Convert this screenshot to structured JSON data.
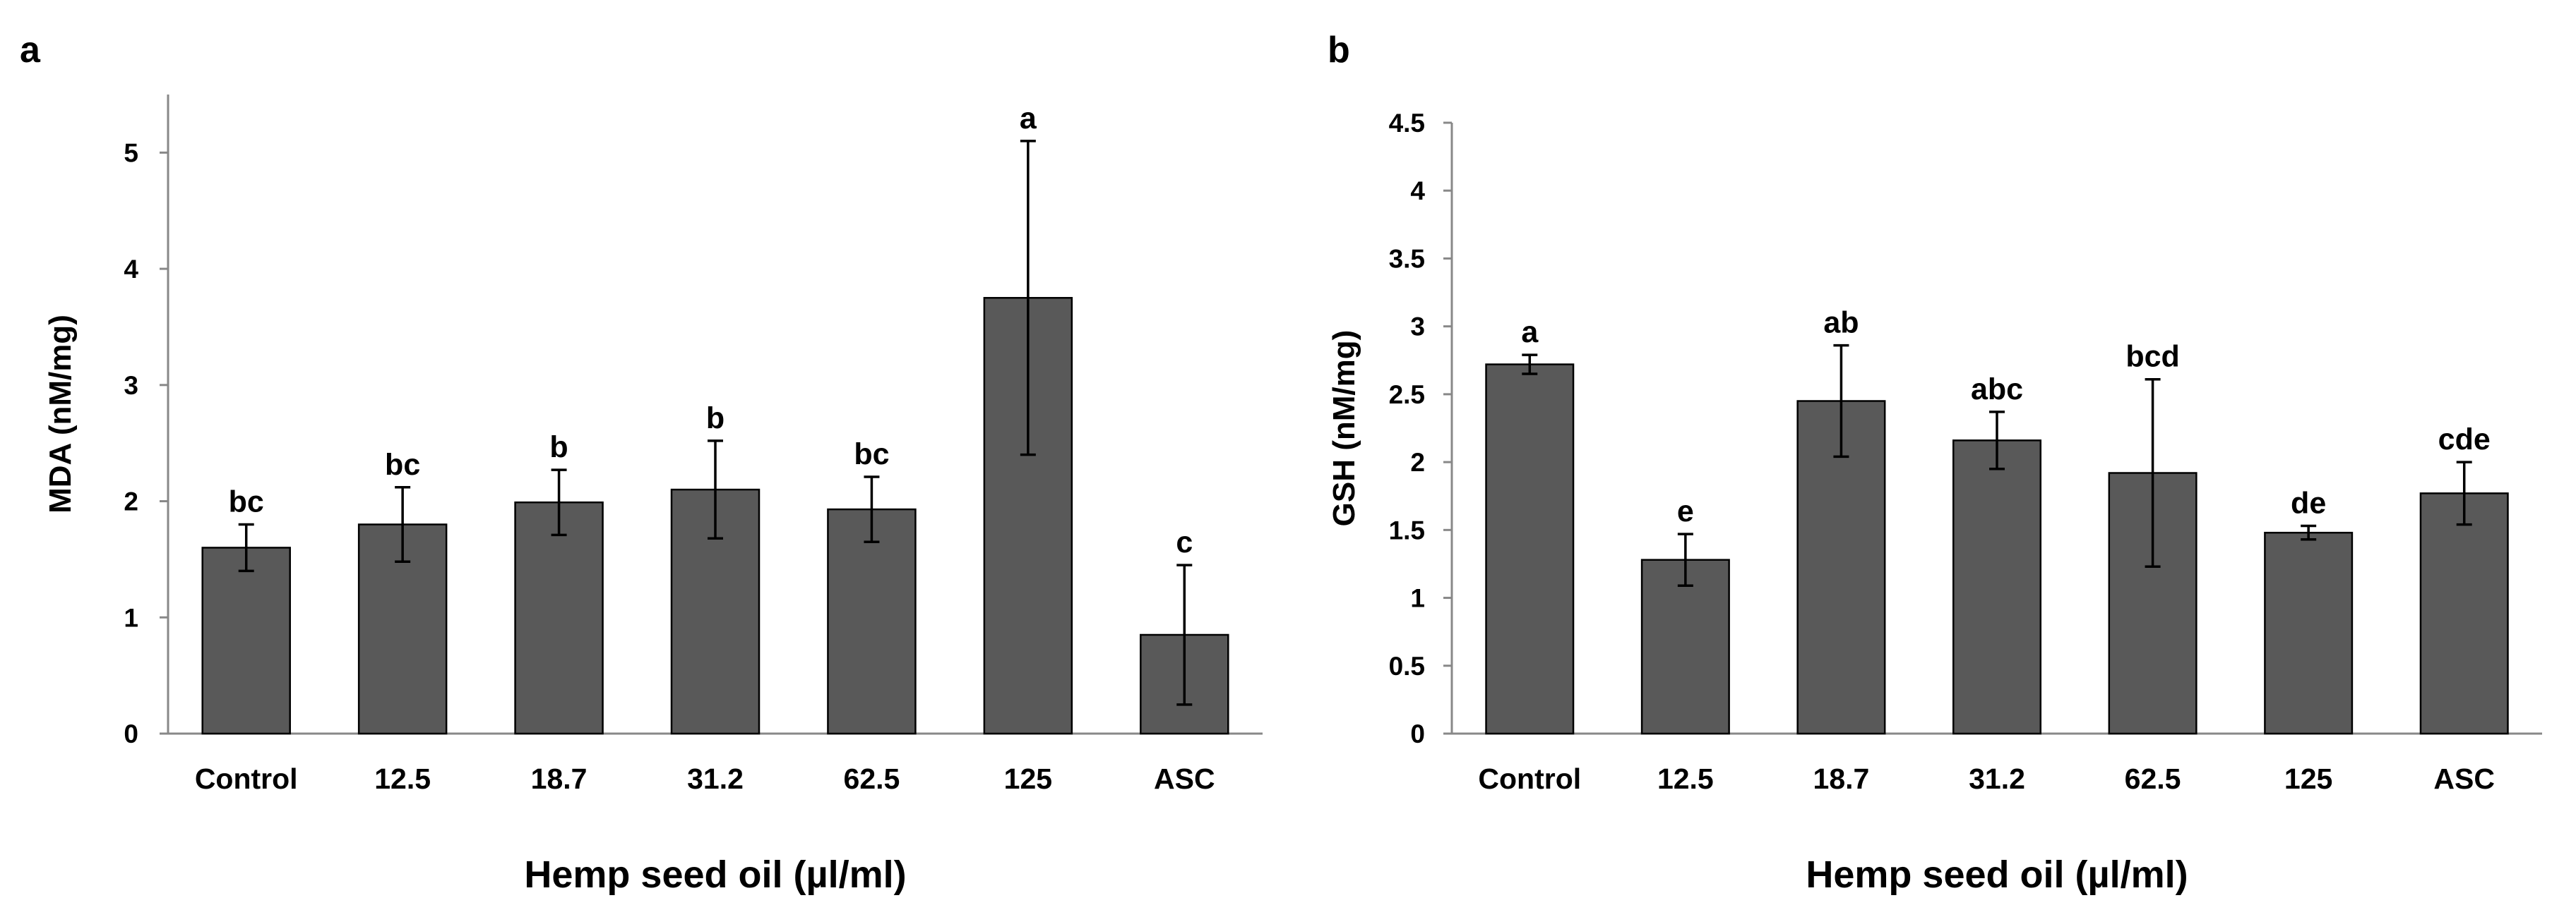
{
  "chart_data": [
    {
      "type": "bar",
      "panel_label": "a",
      "categories": [
        "Control",
        "12.5",
        "18.7",
        "31.2",
        "62.5",
        "125",
        "ASC"
      ],
      "values": [
        1.6,
        1.8,
        1.99,
        2.1,
        1.93,
        3.75,
        0.85
      ],
      "errors": [
        0.2,
        0.32,
        0.28,
        0.42,
        0.28,
        1.35,
        0.6
      ],
      "significance": [
        "bc",
        "bc",
        "b",
        "b",
        "bc",
        "a",
        "c"
      ],
      "ylabel": "MDA (nM/mg)",
      "xlabel": "Hemp seed oil (µl/ml)",
      "ylim": [
        0,
        5.5
      ],
      "yticks": [
        0,
        1,
        2,
        3,
        4,
        5
      ],
      "ytick_labels": [
        "0",
        "1",
        "2",
        "3",
        "4",
        "5"
      ],
      "grid": false,
      "bar_color": "#595959"
    },
    {
      "type": "bar",
      "panel_label": "b",
      "categories": [
        "Control",
        "12.5",
        "18.7",
        "31.2",
        "62.5",
        "125",
        "ASC"
      ],
      "values": [
        2.72,
        1.28,
        2.45,
        2.16,
        1.92,
        1.48,
        1.77
      ],
      "errors": [
        0.07,
        0.19,
        0.41,
        0.21,
        0.69,
        0.05,
        0.23
      ],
      "significance": [
        "a",
        "e",
        "ab",
        "abc",
        "bcd",
        "de",
        "cde"
      ],
      "ylabel": "GSH (nM/mg)",
      "xlabel": "Hemp seed oil (µl/ml)",
      "ylim": [
        0,
        4.5
      ],
      "yticks": [
        0,
        0.5,
        1,
        1.5,
        2,
        2.5,
        3,
        3.5,
        4,
        4.5
      ],
      "ytick_labels": [
        "0",
        "0.5",
        "1",
        "1.5",
        "2",
        "2.5",
        "3",
        "3.5",
        "4",
        "4.5"
      ],
      "grid": false,
      "bar_color": "#595959"
    }
  ]
}
